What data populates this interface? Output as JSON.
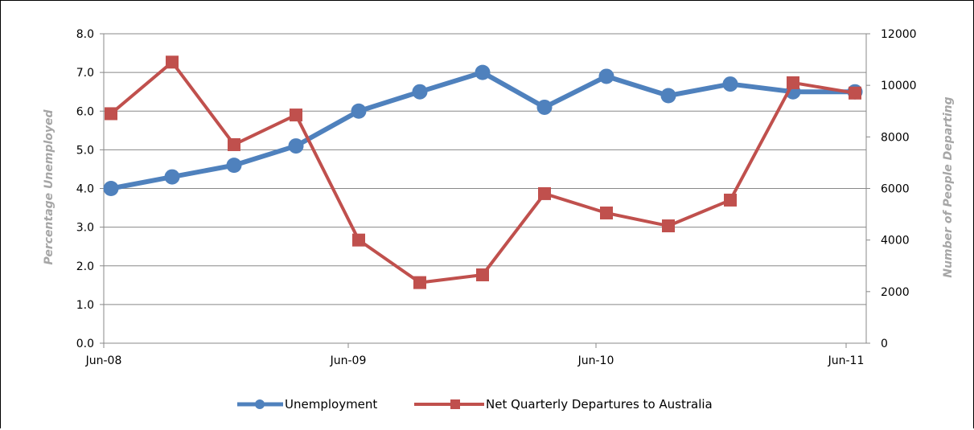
{
  "chart_data": {
    "type": "line",
    "x_tick_labels": [
      "Jun-08",
      "Jun-09",
      "Jun-10",
      "Jun-11"
    ],
    "x": [
      0,
      1,
      2,
      3,
      4,
      5,
      6,
      7,
      8,
      9,
      10,
      11,
      12
    ],
    "y_left": {
      "label": "Percentage Unemployed",
      "min": 0,
      "max": 8,
      "ticks": [
        "0.0",
        "1.0",
        "2.0",
        "3.0",
        "4.0",
        "5.0",
        "6.0",
        "7.0",
        "8.0"
      ]
    },
    "y_right": {
      "label": "Number of People Departing",
      "min": 0,
      "max": 12000,
      "ticks": [
        "0",
        "2000",
        "4000",
        "6000",
        "8000",
        "10000",
        "12000"
      ]
    },
    "series": [
      {
        "name": "Unemployment",
        "axis": "left",
        "color": "#4f81bd",
        "marker": "circle",
        "x": [
          0,
          1,
          2,
          3,
          4,
          5,
          6,
          7,
          8,
          9,
          10,
          11,
          12
        ],
        "values": [
          4.0,
          4.3,
          4.6,
          5.1,
          6.0,
          6.5,
          7.0,
          6.1,
          6.9,
          6.4,
          6.7,
          6.5,
          6.5
        ]
      },
      {
        "name": "Net Quarterly Departures to Australia",
        "axis": "right",
        "color": "#c0504d",
        "marker": "square",
        "x": [
          0,
          1,
          2,
          3,
          4,
          5,
          6,
          7,
          8,
          9,
          10,
          11,
          12
        ],
        "values": [
          8900,
          10900,
          7700,
          8850,
          4000,
          2350,
          2650,
          5800,
          5050,
          4550,
          5550,
          10100,
          9700
        ]
      }
    ],
    "grid": true,
    "legend": "bottom"
  }
}
